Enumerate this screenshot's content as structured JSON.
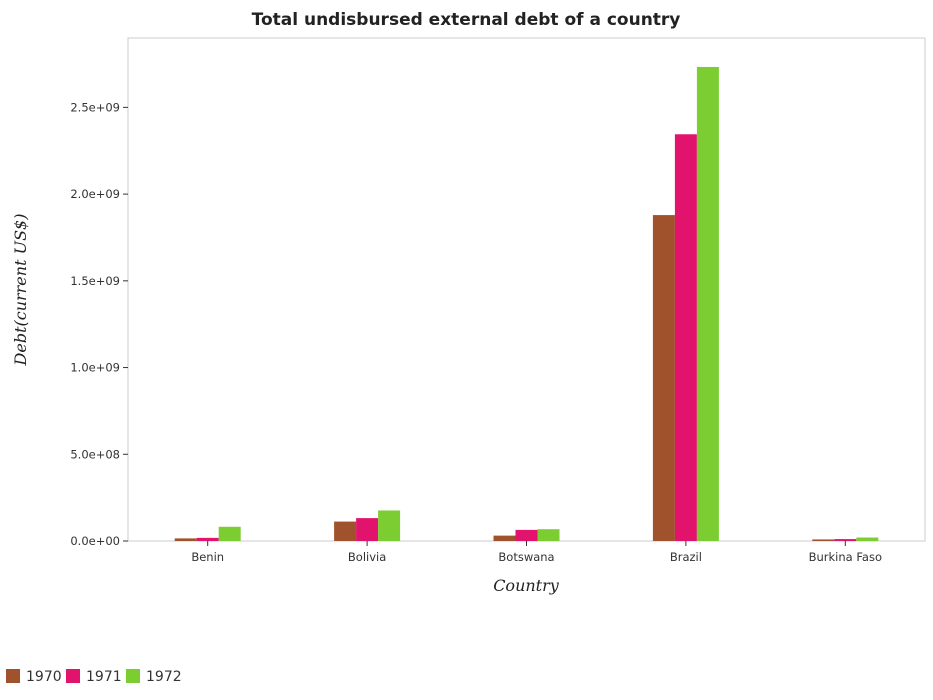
{
  "chart_data": {
    "type": "bar",
    "title": "Total undisbursed external debt of a country",
    "xlabel": "Country",
    "ylabel": "Debt(current US$)",
    "categories": [
      "Benin",
      "Bolivia",
      "Botswana",
      "Brazil",
      "Burkina Faso"
    ],
    "series": [
      {
        "name": "1970",
        "color": "#a0522d",
        "values": [
          15000000,
          112000000,
          31000000,
          1879000000,
          9000000
        ]
      },
      {
        "name": "1971",
        "color": "#e1136c",
        "values": [
          18000000,
          132000000,
          64000000,
          2345000000,
          11000000
        ]
      },
      {
        "name": "1972",
        "color": "#7ccd32",
        "values": [
          82000000,
          176000000,
          68000000,
          2733000000,
          20000000
        ]
      }
    ],
    "ylim": [
      0,
      2900000000
    ],
    "yticks": [
      0,
      500000000,
      1000000000,
      1500000000,
      2000000000,
      2500000000
    ],
    "ytick_labels": [
      "0.0e+00",
      "5.0e+08",
      "1.0e+09",
      "1.5e+09",
      "2.0e+09",
      "2.5e+09"
    ],
    "grid": false,
    "legend_position": "bottom-left"
  }
}
